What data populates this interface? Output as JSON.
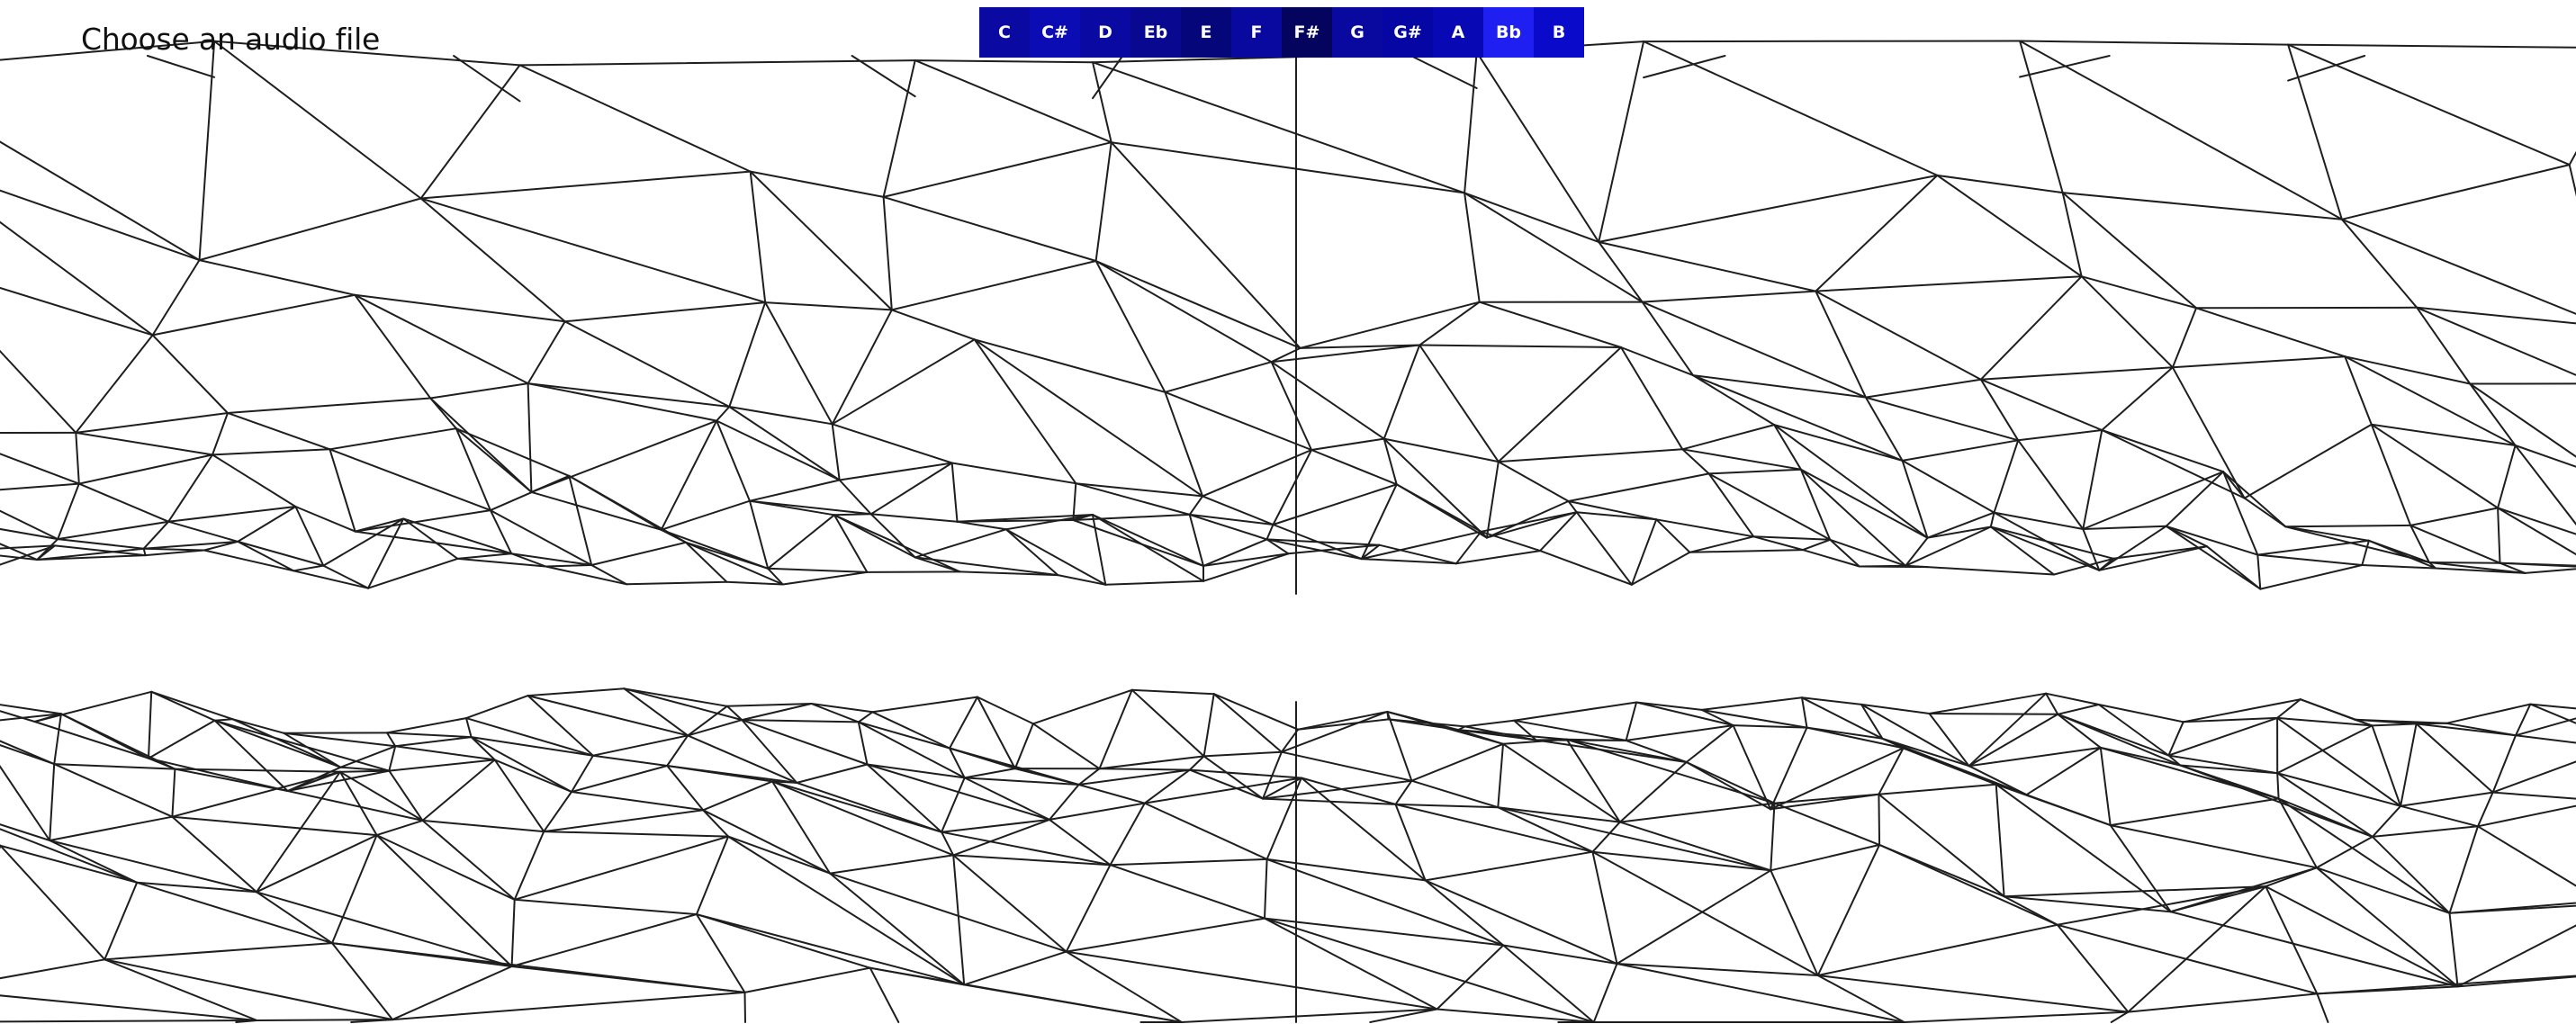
{
  "file_picker": {
    "label": "Choose an audio file"
  },
  "key_bar": {
    "keys": [
      {
        "name": "C",
        "color": "#0a0aa3"
      },
      {
        "name": "C#",
        "color": "#0c0cb4"
      },
      {
        "name": "D",
        "color": "#0a0aa2"
      },
      {
        "name": "Eb",
        "color": "#080890"
      },
      {
        "name": "E",
        "color": "#06067b"
      },
      {
        "name": "F",
        "color": "#0909a0"
      },
      {
        "name": "F#",
        "color": "#04045f"
      },
      {
        "name": "G",
        "color": "#0909a0"
      },
      {
        "name": "G#",
        "color": "#0606a4"
      },
      {
        "name": "A",
        "color": "#0808b4"
      },
      {
        "name": "Bb",
        "color": "#1f1ff2"
      },
      {
        "name": "B",
        "color": "#0a0acb"
      }
    ]
  },
  "visualizer": {
    "type": "wireframe-mesh",
    "stroke_color": "#1e1e1e"
  }
}
